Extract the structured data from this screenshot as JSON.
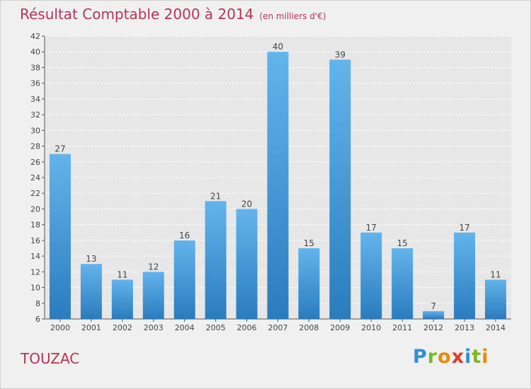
{
  "title": "Résultat Comptable 2000 à 2014",
  "subtitle": "(en milliers d'€)",
  "town": "TOUZAC",
  "logo": {
    "text": "Proxiti",
    "letters": [
      "P",
      "r",
      "o",
      "x",
      "i",
      "t",
      "i"
    ],
    "colors": [
      "#2f8fd0",
      "#7cb826",
      "#e8890c",
      "#e23a2a",
      "#2f8fd0",
      "#7cb826",
      "#e8890c"
    ]
  },
  "colors": {
    "bar_light": "#63b4ec",
    "bar_dark": "#2a7cbd",
    "title": "#b5345a",
    "grid": "#ffffff",
    "axis": "#555555"
  },
  "chart_data": {
    "type": "bar",
    "title": "Résultat Comptable 2000 à 2014",
    "ylabel": "en milliers d'€",
    "categories": [
      "2000",
      "2001",
      "2002",
      "2003",
      "2004",
      "2005",
      "2006",
      "2007",
      "2008",
      "2009",
      "2010",
      "2011",
      "2012",
      "2013",
      "2014"
    ],
    "values": [
      27,
      13,
      11,
      12,
      16,
      21,
      20,
      40,
      15,
      39,
      17,
      15,
      7,
      17,
      11
    ],
    "ylim": [
      6,
      42
    ],
    "yticks": [
      6,
      8,
      10,
      12,
      14,
      16,
      18,
      20,
      22,
      24,
      26,
      28,
      30,
      32,
      34,
      36,
      38,
      40,
      42
    ],
    "grid": true
  }
}
